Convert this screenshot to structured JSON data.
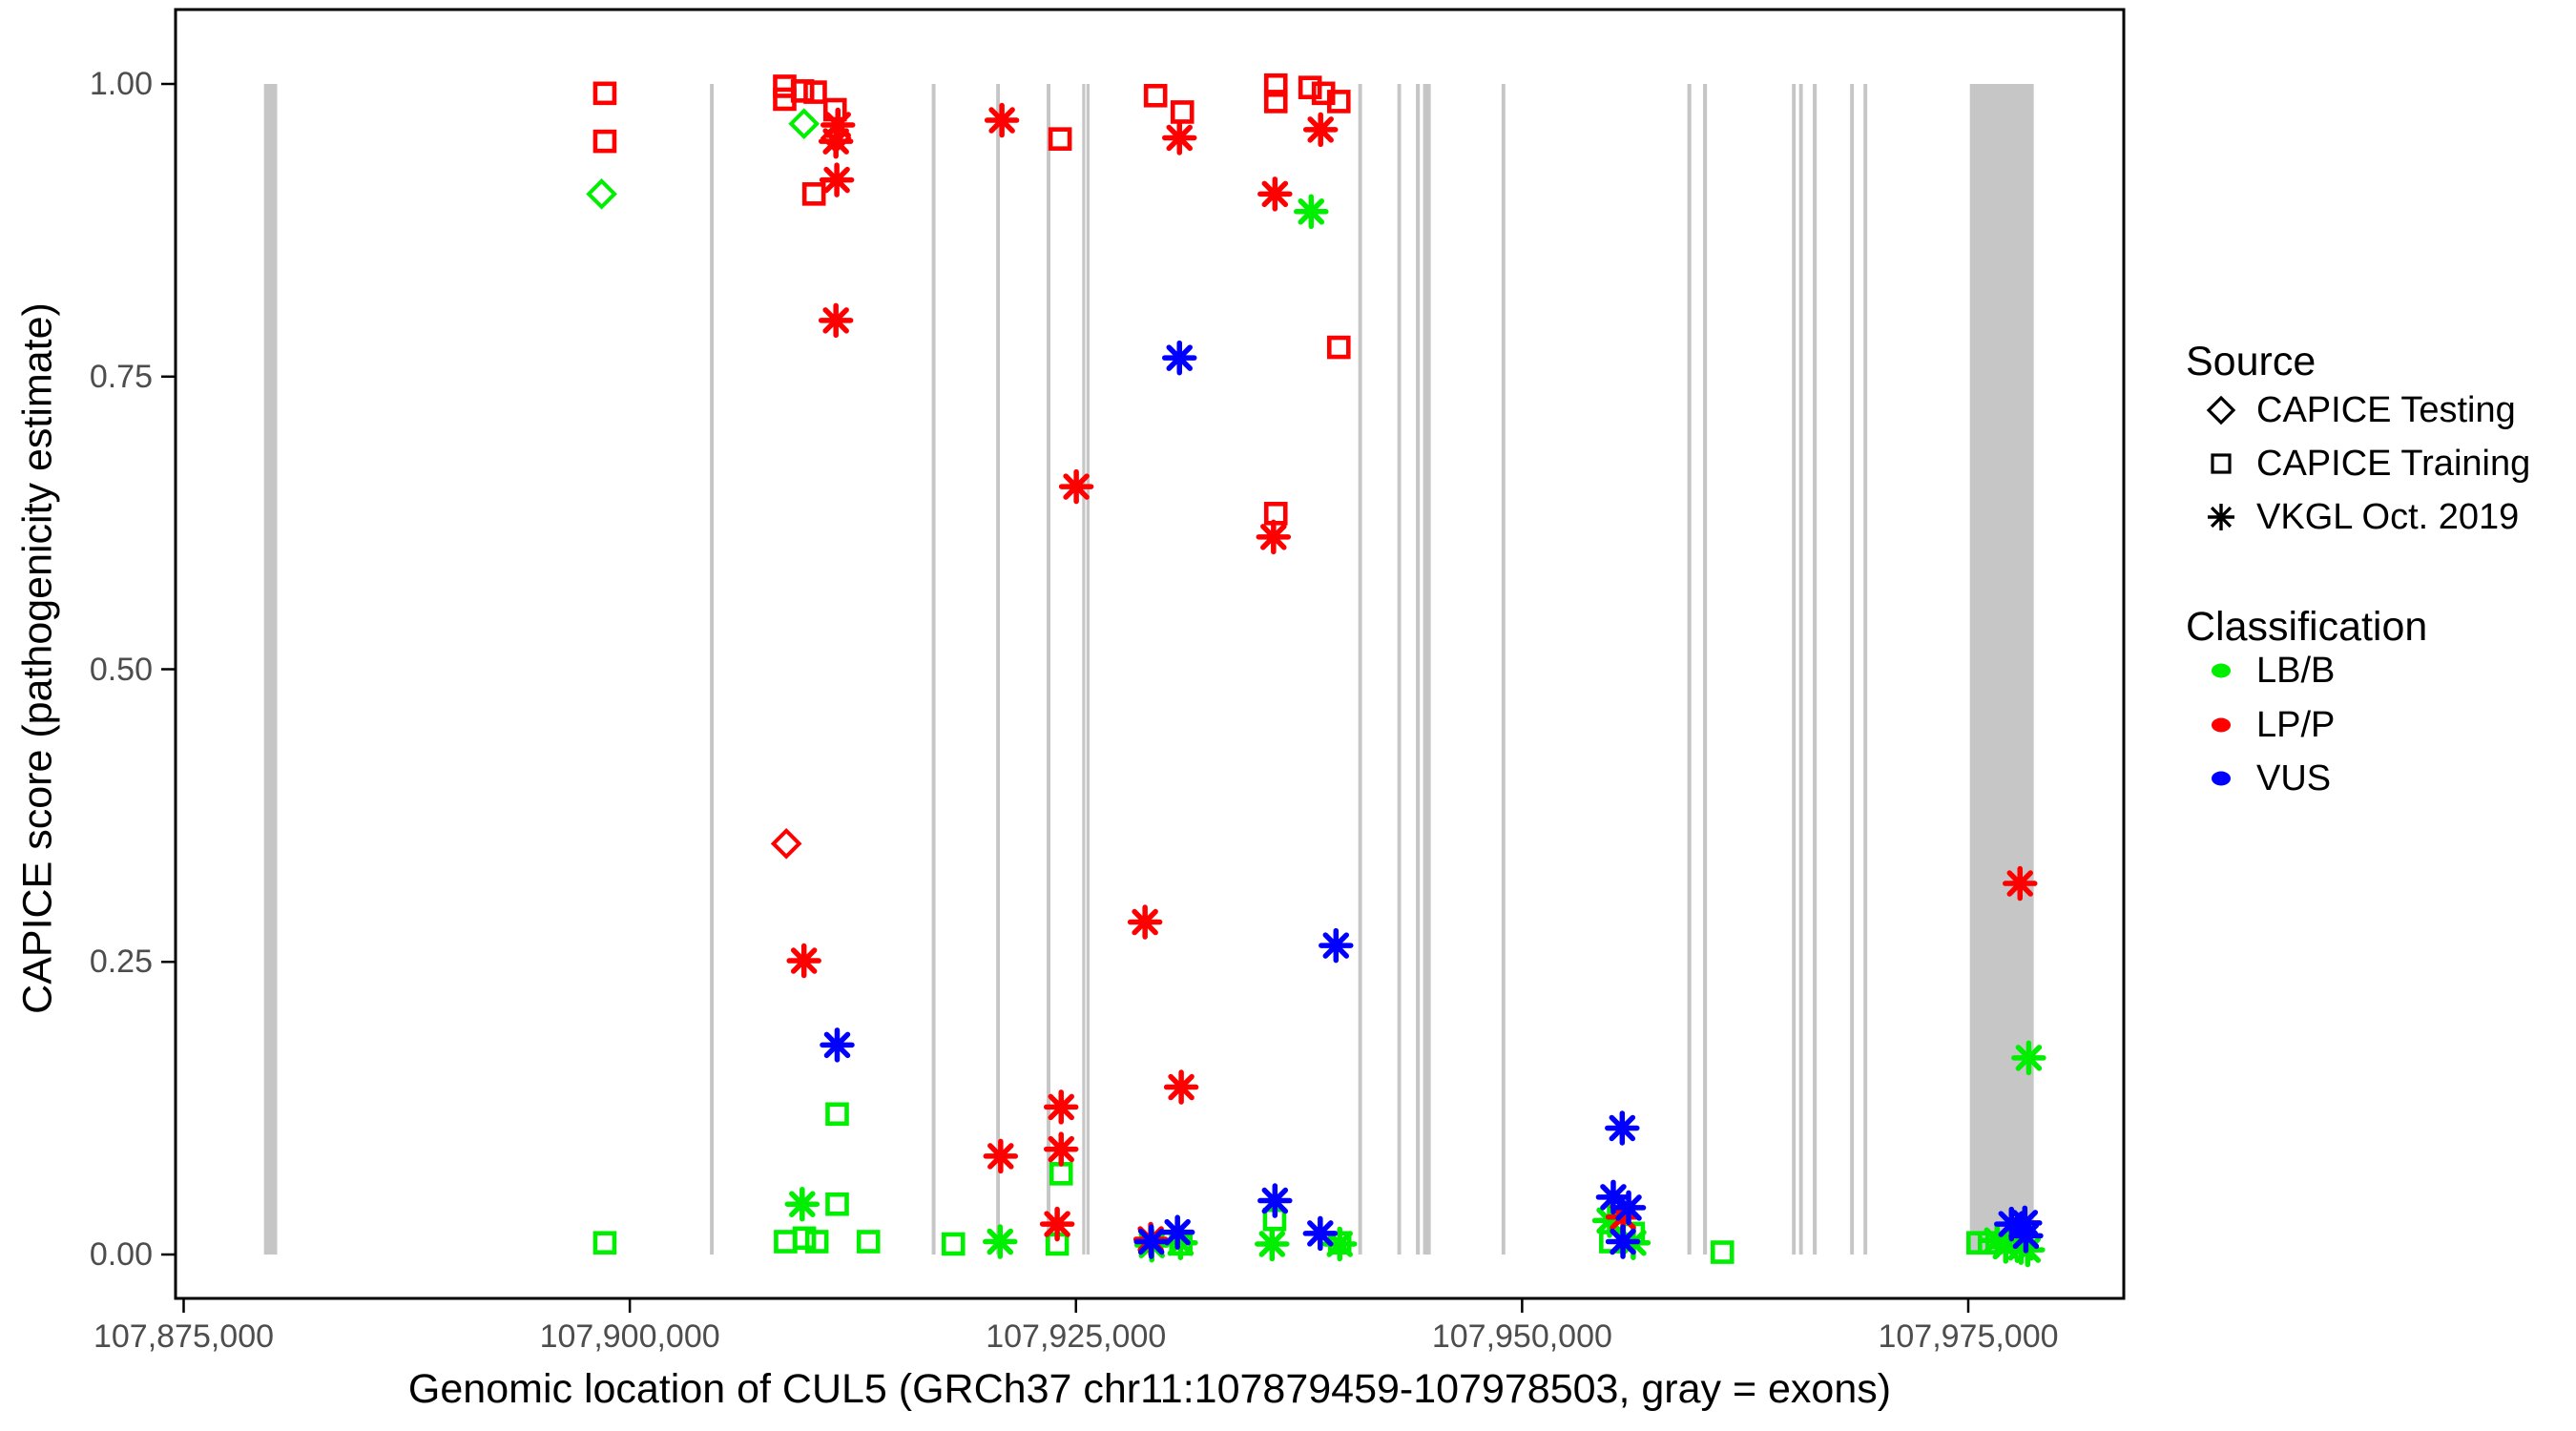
{
  "chart_data": {
    "type": "scatter",
    "title": "",
    "xlabel": "Genomic location of CUL5 (GRCh37 chr11:107879459-107978503, gray = exons)",
    "ylabel": "CAPICE score (pathogenicity estimate)",
    "gene_region": "GRCh37 chr11:107879459-107978503",
    "x_ticks": [
      {
        "value": 107875000,
        "label": "107,875,000"
      },
      {
        "value": 107900000,
        "label": "107,900,000"
      },
      {
        "value": 107925000,
        "label": "107,925,000"
      },
      {
        "value": 107950000,
        "label": "107,950,000"
      },
      {
        "value": 107975000,
        "label": "107,975,000"
      }
    ],
    "y_ticks": [
      {
        "value": 0.0,
        "label": "0.00"
      },
      {
        "value": 0.25,
        "label": "0.25"
      },
      {
        "value": 0.5,
        "label": "0.50"
      },
      {
        "value": 0.75,
        "label": "0.75"
      },
      {
        "value": 1.0,
        "label": "1.00"
      }
    ],
    "ylim": [
      0,
      1
    ],
    "grid": false,
    "legend_position": "right",
    "colors": {
      "LB/B": "#00ee00",
      "LP/P": "#ff0000",
      "VUS": "#0000ff",
      "exon": "#c6c6c6",
      "border": "#000000"
    },
    "shape_by_source": {
      "CAPICE Testing": "diamond",
      "CAPICE Training": "square",
      "VKGL Oct. 2019": "asterisk"
    },
    "exons_bp": [
      [
        107879500,
        107880240
      ],
      [
        107904490,
        107904700
      ],
      [
        107916920,
        107917130
      ],
      [
        107920530,
        107920740
      ],
      [
        107923360,
        107923570
      ],
      [
        107925350,
        107925520
      ],
      [
        107925590,
        107925760
      ],
      [
        107940820,
        107941030
      ],
      [
        107943010,
        107943220
      ],
      [
        107944050,
        107944270
      ],
      [
        107944450,
        107944880
      ],
      [
        107948850,
        107949060
      ],
      [
        107959260,
        107959480
      ],
      [
        107960140,
        107960360
      ],
      [
        107965120,
        107965330
      ],
      [
        107965520,
        107965730
      ],
      [
        107966290,
        107966510
      ],
      [
        107968380,
        107968590
      ],
      [
        107969130,
        107969340
      ],
      [
        107975090,
        107978670
      ]
    ],
    "points": [
      {
        "pos": 107898600,
        "score": 0.992,
        "source": "CAPICE Training",
        "cls": "LP/P"
      },
      {
        "pos": 107898600,
        "score": 0.951,
        "source": "CAPICE Training",
        "cls": "LP/P"
      },
      {
        "pos": 107898420,
        "score": 0.906,
        "source": "CAPICE Testing",
        "cls": "LB/B"
      },
      {
        "pos": 107898600,
        "score": 0.01,
        "source": "CAPICE Training",
        "cls": "LB/B"
      },
      {
        "pos": 107908680,
        "score": 0.998,
        "source": "CAPICE Training",
        "cls": "LP/P"
      },
      {
        "pos": 107908680,
        "score": 0.987,
        "source": "CAPICE Training",
        "cls": "LP/P"
      },
      {
        "pos": 107909680,
        "score": 0.994,
        "source": "CAPICE Training",
        "cls": "LP/P"
      },
      {
        "pos": 107910390,
        "score": 0.993,
        "source": "CAPICE Training",
        "cls": "LP/P"
      },
      {
        "pos": 107911500,
        "score": 0.978,
        "source": "CAPICE Training",
        "cls": "LP/P"
      },
      {
        "pos": 107909760,
        "score": 0.966,
        "source": "CAPICE Testing",
        "cls": "LB/B"
      },
      {
        "pos": 107911660,
        "score": 0.965,
        "source": "VKGL Oct. 2019",
        "cls": "LP/P"
      },
      {
        "pos": 107911550,
        "score": 0.954,
        "source": "CAPICE Testing",
        "cls": "LP/P"
      },
      {
        "pos": 107911550,
        "score": 0.951,
        "source": "VKGL Oct. 2019",
        "cls": "LP/P"
      },
      {
        "pos": 107911600,
        "score": 0.918,
        "source": "VKGL Oct. 2019",
        "cls": "LP/P"
      },
      {
        "pos": 107910320,
        "score": 0.906,
        "source": "CAPICE Training",
        "cls": "LP/P"
      },
      {
        "pos": 107911550,
        "score": 0.798,
        "source": "VKGL Oct. 2019",
        "cls": "LP/P"
      },
      {
        "pos": 107908770,
        "score": 0.351,
        "source": "CAPICE Testing",
        "cls": "LP/P"
      },
      {
        "pos": 107909760,
        "score": 0.251,
        "source": "VKGL Oct. 2019",
        "cls": "LP/P"
      },
      {
        "pos": 107911620,
        "score": 0.179,
        "source": "VKGL Oct. 2019",
        "cls": "VUS"
      },
      {
        "pos": 107911620,
        "score": 0.12,
        "source": "CAPICE Training",
        "cls": "LB/B"
      },
      {
        "pos": 107909660,
        "score": 0.043,
        "source": "VKGL Oct. 2019",
        "cls": "LB/B"
      },
      {
        "pos": 107911620,
        "score": 0.043,
        "source": "CAPICE Training",
        "cls": "LB/B"
      },
      {
        "pos": 107908730,
        "score": 0.011,
        "source": "CAPICE Training",
        "cls": "LB/B"
      },
      {
        "pos": 107909780,
        "score": 0.014,
        "source": "CAPICE Training",
        "cls": "LB/B"
      },
      {
        "pos": 107910480,
        "score": 0.011,
        "source": "CAPICE Training",
        "cls": "LB/B"
      },
      {
        "pos": 107913370,
        "score": 0.011,
        "source": "CAPICE Training",
        "cls": "LB/B"
      },
      {
        "pos": 107918130,
        "score": 0.009,
        "source": "CAPICE Training",
        "cls": "LB/B"
      },
      {
        "pos": 107920850,
        "score": 0.969,
        "source": "VKGL Oct. 2019",
        "cls": "LP/P"
      },
      {
        "pos": 107920780,
        "score": 0.084,
        "source": "VKGL Oct. 2019",
        "cls": "LP/P"
      },
      {
        "pos": 107920750,
        "score": 0.011,
        "source": "VKGL Oct. 2019",
        "cls": "LB/B"
      },
      {
        "pos": 107924110,
        "score": 0.953,
        "source": "CAPICE Training",
        "cls": "LP/P"
      },
      {
        "pos": 107925020,
        "score": 0.656,
        "source": "VKGL Oct. 2019",
        "cls": "LP/P"
      },
      {
        "pos": 107924170,
        "score": 0.126,
        "source": "VKGL Oct. 2019",
        "cls": "LP/P"
      },
      {
        "pos": 107924170,
        "score": 0.09,
        "source": "VKGL Oct. 2019",
        "cls": "LP/P"
      },
      {
        "pos": 107924170,
        "score": 0.069,
        "source": "CAPICE Training",
        "cls": "LB/B"
      },
      {
        "pos": 107923950,
        "score": 0.026,
        "source": "VKGL Oct. 2019",
        "cls": "LP/P"
      },
      {
        "pos": 107923950,
        "score": 0.009,
        "source": "CAPICE Training",
        "cls": "LB/B"
      },
      {
        "pos": 107928870,
        "score": 0.284,
        "source": "VKGL Oct. 2019",
        "cls": "LP/P"
      },
      {
        "pos": 107930900,
        "score": 0.143,
        "source": "VKGL Oct. 2019",
        "cls": "LP/P"
      },
      {
        "pos": 107929190,
        "score": 0.013,
        "source": "VKGL Oct. 2019",
        "cls": "LP/P"
      },
      {
        "pos": 107929220,
        "score": 0.011,
        "source": "VKGL Oct. 2019",
        "cls": "VUS"
      },
      {
        "pos": 107929250,
        "score": 0.008,
        "source": "VKGL Oct. 2019",
        "cls": "LB/B"
      },
      {
        "pos": 107930690,
        "score": 0.019,
        "source": "VKGL Oct. 2019",
        "cls": "VUS"
      },
      {
        "pos": 107930860,
        "score": 0.01,
        "source": "VKGL Oct. 2019",
        "cls": "LB/B"
      },
      {
        "pos": 107930880,
        "score": 0.009,
        "source": "CAPICE Training",
        "cls": "LB/B"
      },
      {
        "pos": 107929460,
        "score": 0.99,
        "source": "CAPICE Training",
        "cls": "LP/P"
      },
      {
        "pos": 107930960,
        "score": 0.976,
        "source": "CAPICE Training",
        "cls": "LP/P"
      },
      {
        "pos": 107930800,
        "score": 0.954,
        "source": "VKGL Oct. 2019",
        "cls": "LP/P"
      },
      {
        "pos": 107930800,
        "score": 0.766,
        "source": "VKGL Oct. 2019",
        "cls": "VUS"
      },
      {
        "pos": 107936200,
        "score": 0.999,
        "source": "CAPICE Training",
        "cls": "LP/P"
      },
      {
        "pos": 107936200,
        "score": 0.985,
        "source": "CAPICE Training",
        "cls": "LP/P"
      },
      {
        "pos": 107936150,
        "score": 0.906,
        "source": "VKGL Oct. 2019",
        "cls": "LP/P"
      },
      {
        "pos": 107936200,
        "score": 0.633,
        "source": "CAPICE Training",
        "cls": "LP/P"
      },
      {
        "pos": 107936070,
        "score": 0.613,
        "source": "VKGL Oct. 2019",
        "cls": "LP/P"
      },
      {
        "pos": 107936150,
        "score": 0.046,
        "source": "VKGL Oct. 2019",
        "cls": "VUS"
      },
      {
        "pos": 107936130,
        "score": 0.03,
        "source": "CAPICE Training",
        "cls": "LB/B"
      },
      {
        "pos": 107935990,
        "score": 0.009,
        "source": "VKGL Oct. 2019",
        "cls": "LB/B"
      },
      {
        "pos": 107938120,
        "score": 0.997,
        "source": "CAPICE Training",
        "cls": "LP/P"
      },
      {
        "pos": 107938870,
        "score": 0.992,
        "source": "CAPICE Training",
        "cls": "LP/P"
      },
      {
        "pos": 107939730,
        "score": 0.985,
        "source": "CAPICE Training",
        "cls": "LP/P"
      },
      {
        "pos": 107938710,
        "score": 0.961,
        "source": "VKGL Oct. 2019",
        "cls": "LP/P"
      },
      {
        "pos": 107938180,
        "score": 0.891,
        "source": "VKGL Oct. 2019",
        "cls": "LB/B"
      },
      {
        "pos": 107939730,
        "score": 0.775,
        "source": "CAPICE Training",
        "cls": "LP/P"
      },
      {
        "pos": 107939570,
        "score": 0.264,
        "source": "VKGL Oct. 2019",
        "cls": "VUS"
      },
      {
        "pos": 107938690,
        "score": 0.018,
        "source": "VKGL Oct. 2019",
        "cls": "VUS"
      },
      {
        "pos": 107939780,
        "score": 0.01,
        "source": "CAPICE Training",
        "cls": "LB/B"
      },
      {
        "pos": 107939780,
        "score": 0.009,
        "source": "VKGL Oct. 2019",
        "cls": "LB/B"
      },
      {
        "pos": 107955610,
        "score": 0.108,
        "source": "VKGL Oct. 2019",
        "cls": "VUS"
      },
      {
        "pos": 107955110,
        "score": 0.049,
        "source": "VKGL Oct. 2019",
        "cls": "VUS"
      },
      {
        "pos": 107955970,
        "score": 0.04,
        "source": "VKGL Oct. 2019",
        "cls": "VUS"
      },
      {
        "pos": 107955650,
        "score": 0.032,
        "source": "VKGL Oct. 2019",
        "cls": "LP/P"
      },
      {
        "pos": 107954900,
        "score": 0.029,
        "source": "VKGL Oct. 2019",
        "cls": "LB/B"
      },
      {
        "pos": 107956230,
        "score": 0.018,
        "source": "CAPICE Training",
        "cls": "LB/B"
      },
      {
        "pos": 107954970,
        "score": 0.011,
        "source": "CAPICE Training",
        "cls": "LB/B"
      },
      {
        "pos": 107955650,
        "score": 0.011,
        "source": "VKGL Oct. 2019",
        "cls": "VUS"
      },
      {
        "pos": 107956230,
        "score": 0.01,
        "source": "VKGL Oct. 2019",
        "cls": "LB/B"
      },
      {
        "pos": 107961220,
        "score": 0.002,
        "source": "CAPICE Training",
        "cls": "LB/B"
      },
      {
        "pos": 107977900,
        "score": 0.317,
        "source": "VKGL Oct. 2019",
        "cls": "LP/P"
      },
      {
        "pos": 107978390,
        "score": 0.168,
        "source": "VKGL Oct. 2019",
        "cls": "LB/B"
      },
      {
        "pos": 107977420,
        "score": 0.026,
        "source": "VKGL Oct. 2019",
        "cls": "VUS"
      },
      {
        "pos": 107978170,
        "score": 0.027,
        "source": "VKGL Oct. 2019",
        "cls": "VUS"
      },
      {
        "pos": 107978230,
        "score": 0.016,
        "source": "VKGL Oct. 2019",
        "cls": "VUS"
      },
      {
        "pos": 107975550,
        "score": 0.01,
        "source": "CAPICE Training",
        "cls": "LB/B"
      },
      {
        "pos": 107976190,
        "score": 0.01,
        "source": "CAPICE Training",
        "cls": "LB/B"
      },
      {
        "pos": 107976620,
        "score": 0.012,
        "source": "VKGL Oct. 2019",
        "cls": "LB/B"
      },
      {
        "pos": 107977100,
        "score": 0.007,
        "source": "VKGL Oct. 2019",
        "cls": "LB/B"
      },
      {
        "pos": 107977960,
        "score": 0.006,
        "source": "VKGL Oct. 2019",
        "cls": "LB/B"
      },
      {
        "pos": 107978330,
        "score": 0.004,
        "source": "VKGL Oct. 2019",
        "cls": "LB/B"
      }
    ]
  },
  "legend": {
    "source_title": "Source",
    "source_items": [
      {
        "label": "CAPICE Testing",
        "shape": "diamond"
      },
      {
        "label": "CAPICE Training",
        "shape": "square"
      },
      {
        "label": "VKGL Oct. 2019",
        "shape": "asterisk"
      }
    ],
    "classification_title": "Classification",
    "classification_items": [
      {
        "label": "LB/B",
        "color": "#00ee00"
      },
      {
        "label": "LP/P",
        "color": "#ff0000"
      },
      {
        "label": "VUS",
        "color": "#0000ff"
      }
    ]
  }
}
